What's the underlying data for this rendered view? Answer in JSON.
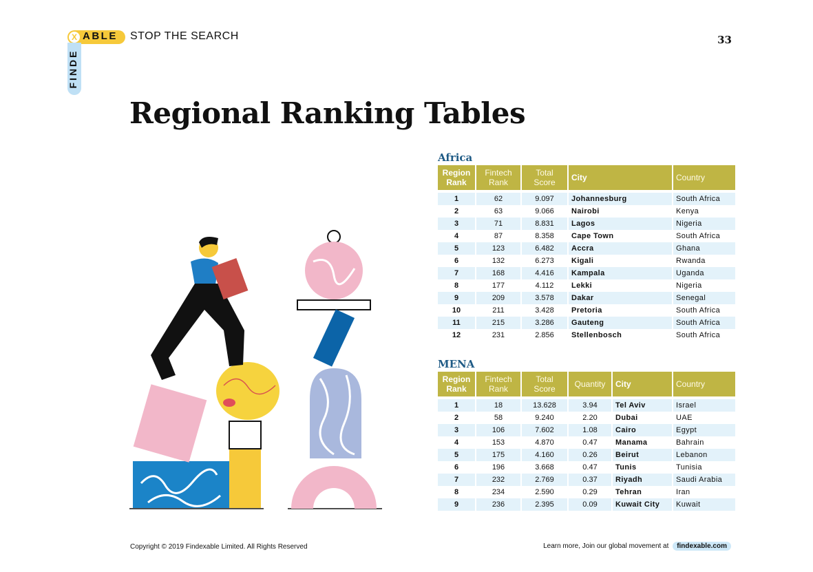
{
  "header": {
    "logo_x": "X",
    "logo_able": "ABLE",
    "logo_finde": "FINDE",
    "tagline": "STOP THE SEARCH",
    "page_number": "33"
  },
  "title": "Regional Ranking Tables",
  "colors": {
    "header_bg": "#bfb544",
    "row_stripe": "#e3f2fa",
    "region_title": "#1f5b86",
    "logo_yellow": "#f6c93a",
    "logo_blue": "#bfe0f5"
  },
  "africa": {
    "title": "Africa",
    "headers": [
      "Region Rank",
      "Fintech Rank",
      "Total Score",
      "City",
      "Country"
    ],
    "rows": [
      [
        "1",
        "62",
        "9.097",
        "Johannesburg",
        "South Africa"
      ],
      [
        "2",
        "63",
        "9.066",
        "Nairobi",
        "Kenya"
      ],
      [
        "3",
        "71",
        "8.831",
        "Lagos",
        "Nigeria"
      ],
      [
        "4",
        "87",
        "8.358",
        "Cape Town",
        "South Africa"
      ],
      [
        "5",
        "123",
        "6.482",
        "Accra",
        "Ghana"
      ],
      [
        "6",
        "132",
        "6.273",
        "Kigali",
        "Rwanda"
      ],
      [
        "7",
        "168",
        "4.416",
        "Kampala",
        "Uganda"
      ],
      [
        "8",
        "177",
        "4.112",
        "Lekki",
        "Nigeria"
      ],
      [
        "9",
        "209",
        "3.578",
        "Dakar",
        "Senegal"
      ],
      [
        "10",
        "211",
        "3.428",
        "Pretoria",
        "South Africa"
      ],
      [
        "11",
        "215",
        "3.286",
        "Gauteng",
        "South Africa"
      ],
      [
        "12",
        "231",
        "2.856",
        "Stellenbosch",
        "South Africa"
      ]
    ]
  },
  "mena": {
    "title": "MENA",
    "headers": [
      "Region Rank",
      "Fintech Rank",
      "Total Score",
      "Quantity",
      "City",
      "Country"
    ],
    "rows": [
      [
        "1",
        "18",
        "13.628",
        "3.94",
        "Tel Aviv",
        "Israel"
      ],
      [
        "2",
        "58",
        "9.240",
        "2.20",
        "Dubai",
        "UAE"
      ],
      [
        "3",
        "106",
        "7.602",
        "1.08",
        "Cairo",
        "Egypt"
      ],
      [
        "4",
        "153",
        "4.870",
        "0.47",
        "Manama",
        "Bahrain"
      ],
      [
        "5",
        "175",
        "4.160",
        "0.26",
        "Beirut",
        "Lebanon"
      ],
      [
        "6",
        "196",
        "3.668",
        "0.47",
        "Tunis",
        "Tunisia"
      ],
      [
        "7",
        "232",
        "2.769",
        "0.37",
        "Riyadh",
        "Saudi Arabia"
      ],
      [
        "8",
        "234",
        "2.590",
        "0.29",
        "Tehran",
        "Iran"
      ],
      [
        "9",
        "236",
        "2.395",
        "0.09",
        "Kuwait City",
        "Kuwait"
      ]
    ]
  },
  "footer": {
    "copyright": "Copyright © 2019 Findexable Limited. All Rights Reserved",
    "learn_more": "Learn more, Join our global movement at",
    "link": "findexable.com"
  }
}
